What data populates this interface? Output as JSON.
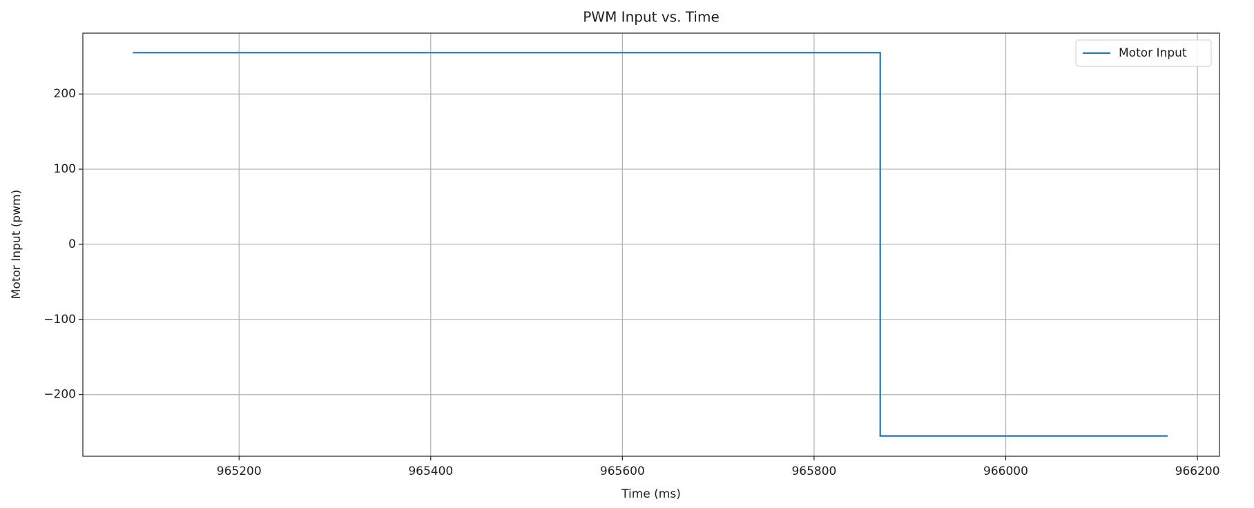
{
  "chart_data": {
    "type": "line",
    "title": "PWM Input vs. Time",
    "x_label": "Time (ms)",
    "y_label": "Motor Input (pwm)",
    "x": [
      965089,
      965869,
      965869,
      966169
    ],
    "series": [
      {
        "name": "Motor Input",
        "color": "#1f77b4",
        "values": [
          255,
          255,
          -255,
          -255
        ]
      }
    ],
    "xlim": [
      965037,
      966223
    ],
    "xticks": [
      965200,
      965400,
      965600,
      965800,
      966000,
      966200
    ],
    "ylim": [
      -282,
      281
    ],
    "yticks": [
      {
        "value": -200,
        "label": "−200"
      },
      {
        "value": -100,
        "label": "−100"
      },
      0,
      100,
      200
    ],
    "grid": true,
    "legend": "upper right"
  }
}
